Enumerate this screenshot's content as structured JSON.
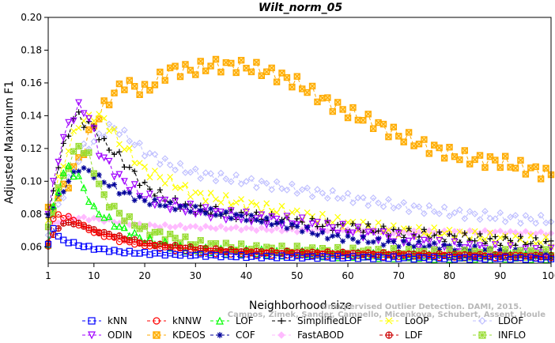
{
  "chart_data": {
    "type": "line",
    "title": "Wilt_norm_05",
    "xlabel": "Neighborhood size",
    "ylabel": "Adjusted Maximum F1",
    "xlim": [
      1,
      100
    ],
    "ylim": [
      0.05,
      0.2
    ],
    "x_ticks": [
      1,
      10,
      20,
      30,
      40,
      50,
      60,
      70,
      80,
      90,
      100
    ],
    "y_ticks": [
      0.06,
      0.08,
      0.1,
      0.12,
      0.14,
      0.16,
      0.18,
      0.2
    ],
    "x_tick_labels": [
      "1",
      "10",
      "20",
      "30",
      "40",
      "50",
      "60",
      "70",
      "80",
      "90",
      "100"
    ],
    "y_tick_labels": [
      "0.06",
      "0.08",
      "0.10",
      "0.12",
      "0.14",
      "0.16",
      "0.18",
      "0.20"
    ],
    "grid": false,
    "legend_position": "bottom",
    "watermark": "Unsupervised Outlier Detection. DAMI, 2015.",
    "watermark_line2": "Campos, Zimek, Sander, Campello, Micenkova, Schubert, Assent, Houle",
    "series": [
      {
        "name": "kNN",
        "color": "#0000ff",
        "marker": "square",
        "points": [
          [
            1,
            0.061
          ],
          [
            2,
            0.072
          ],
          [
            3,
            0.066
          ],
          [
            4,
            0.064
          ],
          [
            5,
            0.063
          ],
          [
            7,
            0.061
          ],
          [
            10,
            0.059
          ],
          [
            15,
            0.057
          ],
          [
            20,
            0.056
          ],
          [
            30,
            0.055
          ],
          [
            40,
            0.054
          ],
          [
            60,
            0.0535
          ],
          [
            80,
            0.053
          ],
          [
            100,
            0.053
          ]
        ]
      },
      {
        "name": "kNNW",
        "color": "#ff0000",
        "marker": "circle",
        "points": [
          [
            1,
            0.061
          ],
          [
            2,
            0.077
          ],
          [
            3,
            0.079
          ],
          [
            5,
            0.078
          ],
          [
            7,
            0.074
          ],
          [
            10,
            0.069
          ],
          [
            15,
            0.064
          ],
          [
            20,
            0.061
          ],
          [
            30,
            0.057
          ],
          [
            40,
            0.056
          ],
          [
            60,
            0.055
          ],
          [
            80,
            0.054
          ],
          [
            100,
            0.054
          ]
        ]
      },
      {
        "name": "LOF",
        "color": "#00ff00",
        "marker": "triangle-up",
        "points": [
          [
            1,
            0.062
          ],
          [
            2,
            0.083
          ],
          [
            3,
            0.095
          ],
          [
            4,
            0.105
          ],
          [
            5,
            0.108
          ],
          [
            7,
            0.102
          ],
          [
            10,
            0.083
          ],
          [
            15,
            0.072
          ],
          [
            20,
            0.064
          ],
          [
            30,
            0.058
          ],
          [
            40,
            0.057
          ],
          [
            60,
            0.055
          ],
          [
            80,
            0.054
          ],
          [
            100,
            0.054
          ]
        ]
      },
      {
        "name": "SimplifiedLOF",
        "color": "#000000",
        "marker": "plus",
        "points": [
          [
            1,
            0.075
          ],
          [
            2,
            0.095
          ],
          [
            3,
            0.11
          ],
          [
            4,
            0.12
          ],
          [
            5,
            0.13
          ],
          [
            6,
            0.138
          ],
          [
            7,
            0.14
          ],
          [
            8,
            0.136
          ],
          [
            10,
            0.133
          ],
          [
            12,
            0.123
          ],
          [
            15,
            0.115
          ],
          [
            20,
            0.097
          ],
          [
            25,
            0.088
          ],
          [
            30,
            0.083
          ],
          [
            40,
            0.079
          ],
          [
            50,
            0.075
          ],
          [
            60,
            0.072
          ],
          [
            70,
            0.069
          ],
          [
            80,
            0.066
          ],
          [
            90,
            0.064
          ],
          [
            100,
            0.062
          ]
        ]
      },
      {
        "name": "LoOP",
        "color": "#ffff00",
        "marker": "x",
        "points": [
          [
            1,
            0.075
          ],
          [
            3,
            0.1
          ],
          [
            5,
            0.12
          ],
          [
            7,
            0.135
          ],
          [
            10,
            0.14
          ],
          [
            12,
            0.138
          ],
          [
            15,
            0.124
          ],
          [
            20,
            0.107
          ],
          [
            30,
            0.092
          ],
          [
            40,
            0.086
          ],
          [
            50,
            0.08
          ],
          [
            60,
            0.074
          ],
          [
            70,
            0.07
          ],
          [
            80,
            0.068
          ],
          [
            90,
            0.065
          ],
          [
            100,
            0.063
          ]
        ]
      },
      {
        "name": "LDOF",
        "color": "#c0c0ff",
        "marker": "diamond",
        "points": [
          [
            1,
            0.07
          ],
          [
            5,
            0.1
          ],
          [
            8,
            0.12
          ],
          [
            10,
            0.124
          ],
          [
            13,
            0.133
          ],
          [
            15,
            0.131
          ],
          [
            20,
            0.118
          ],
          [
            25,
            0.11
          ],
          [
            30,
            0.105
          ],
          [
            40,
            0.1
          ],
          [
            50,
            0.095
          ],
          [
            60,
            0.09
          ],
          [
            70,
            0.085
          ],
          [
            80,
            0.081
          ],
          [
            90,
            0.078
          ],
          [
            100,
            0.076
          ]
        ]
      },
      {
        "name": "ODIN",
        "color": "#a000ff",
        "marker": "triangle-down",
        "points": [
          [
            1,
            0.08
          ],
          [
            3,
            0.115
          ],
          [
            5,
            0.135
          ],
          [
            7,
            0.145
          ],
          [
            9,
            0.14
          ],
          [
            11,
            0.118
          ],
          [
            13,
            0.11
          ],
          [
            15,
            0.102
          ],
          [
            20,
            0.09
          ],
          [
            25,
            0.086
          ],
          [
            30,
            0.082
          ],
          [
            40,
            0.078
          ],
          [
            50,
            0.075
          ],
          [
            60,
            0.07
          ],
          [
            70,
            0.065
          ],
          [
            80,
            0.06
          ],
          [
            90,
            0.058
          ],
          [
            100,
            0.056
          ]
        ]
      },
      {
        "name": "KDEOS",
        "color": "#ffaa00",
        "marker": "square-x",
        "points": [
          [
            1,
            0.08
          ],
          [
            3,
            0.09
          ],
          [
            5,
            0.1
          ],
          [
            8,
            0.12
          ],
          [
            10,
            0.135
          ],
          [
            13,
            0.15
          ],
          [
            16,
            0.16
          ],
          [
            20,
            0.155
          ],
          [
            25,
            0.168
          ],
          [
            30,
            0.168
          ],
          [
            33,
            0.171
          ],
          [
            40,
            0.17
          ],
          [
            45,
            0.166
          ],
          [
            50,
            0.16
          ],
          [
            55,
            0.15
          ],
          [
            60,
            0.142
          ],
          [
            65,
            0.136
          ],
          [
            70,
            0.128
          ],
          [
            75,
            0.122
          ],
          [
            80,
            0.117
          ],
          [
            85,
            0.113
          ],
          [
            90,
            0.112
          ],
          [
            95,
            0.108
          ],
          [
            100,
            0.104
          ]
        ]
      },
      {
        "name": "COF",
        "color": "#000099",
        "marker": "asterisk",
        "points": [
          [
            1,
            0.08
          ],
          [
            3,
            0.09
          ],
          [
            5,
            0.1
          ],
          [
            7,
            0.108
          ],
          [
            9,
            0.106
          ],
          [
            12,
            0.1
          ],
          [
            15,
            0.094
          ],
          [
            20,
            0.088
          ],
          [
            25,
            0.085
          ],
          [
            30,
            0.083
          ],
          [
            35,
            0.08
          ],
          [
            40,
            0.078
          ],
          [
            45,
            0.075
          ],
          [
            50,
            0.072
          ],
          [
            55,
            0.067
          ],
          [
            60,
            0.065
          ],
          [
            70,
            0.062
          ],
          [
            80,
            0.06
          ],
          [
            90,
            0.057
          ],
          [
            100,
            0.055
          ]
        ]
      },
      {
        "name": "FastABOD",
        "color": "#ffbbff",
        "marker": "diamond-filled",
        "points": [
          [
            1,
            0.072
          ],
          [
            5,
            0.078
          ],
          [
            10,
            0.077
          ],
          [
            15,
            0.075
          ],
          [
            20,
            0.073
          ],
          [
            30,
            0.072
          ],
          [
            40,
            0.071
          ],
          [
            50,
            0.07
          ],
          [
            60,
            0.07
          ],
          [
            70,
            0.069
          ],
          [
            80,
            0.069
          ],
          [
            90,
            0.069
          ],
          [
            100,
            0.068
          ]
        ]
      },
      {
        "name": "LDF",
        "color": "#cc0000",
        "marker": "circle-plus",
        "points": [
          [
            1,
            0.062
          ],
          [
            3,
            0.072
          ],
          [
            5,
            0.075
          ],
          [
            8,
            0.073
          ],
          [
            10,
            0.07
          ],
          [
            15,
            0.066
          ],
          [
            20,
            0.062
          ],
          [
            30,
            0.059
          ],
          [
            40,
            0.057
          ],
          [
            60,
            0.056
          ],
          [
            80,
            0.055
          ],
          [
            100,
            0.054
          ]
        ]
      },
      {
        "name": "INFLO",
        "color": "#99dd33",
        "marker": "square-star",
        "points": [
          [
            1,
            0.07
          ],
          [
            3,
            0.095
          ],
          [
            5,
            0.11
          ],
          [
            7,
            0.122
          ],
          [
            9,
            0.115
          ],
          [
            12,
            0.09
          ],
          [
            15,
            0.08
          ],
          [
            20,
            0.07
          ],
          [
            30,
            0.062
          ],
          [
            40,
            0.059
          ],
          [
            60,
            0.057
          ],
          [
            80,
            0.056
          ],
          [
            100,
            0.056
          ]
        ]
      }
    ]
  }
}
